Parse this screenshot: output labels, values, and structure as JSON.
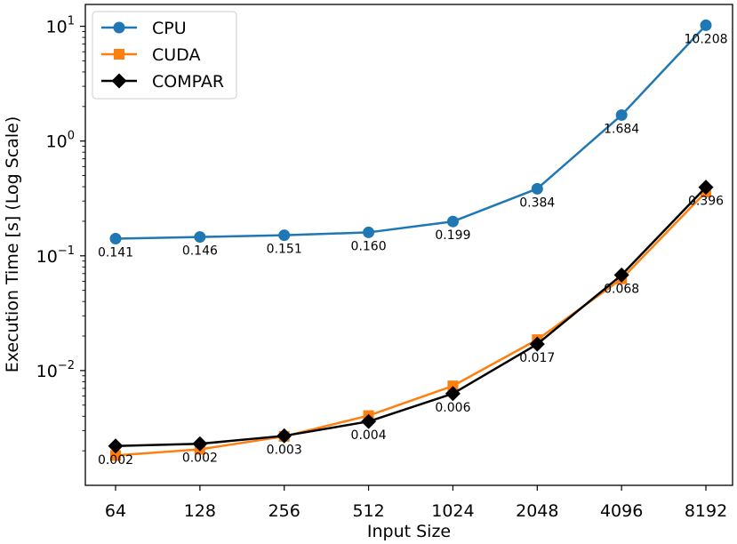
{
  "chart_data": {
    "type": "line",
    "title": "",
    "xlabel": "Input Size",
    "ylabel": "Execution Time [s] (Log Scale)",
    "yscale": "log",
    "ylim": [
      0.001,
      15.5
    ],
    "grid": false,
    "legend_position": "top-left",
    "x": [
      64,
      128,
      256,
      512,
      1024,
      2048,
      4096,
      8192
    ],
    "x_tick_labels": [
      "64",
      "128",
      "256",
      "512",
      "1024",
      "2048",
      "4096",
      "8192"
    ],
    "y_ticks": [
      {
        "value": 10,
        "base": "10",
        "exp": "1"
      },
      {
        "value": 1,
        "base": "10",
        "exp": "0"
      },
      {
        "value": 0.1,
        "base": "10",
        "exp": "−1"
      },
      {
        "value": 0.01,
        "base": "10",
        "exp": "−2"
      }
    ],
    "series": [
      {
        "name": "CPU",
        "color": "#1f77b4",
        "marker": "circle",
        "values": [
          0.141,
          0.146,
          0.151,
          0.16,
          0.199,
          0.384,
          1.684,
          10.208
        ],
        "labels": [
          "0.141",
          "0.146",
          "0.151",
          "0.160",
          "0.199",
          "0.384",
          "1.684",
          "10.208"
        ]
      },
      {
        "name": "CUDA",
        "color": "#ff7f0e",
        "marker": "square",
        "values": [
          0.00182,
          0.00206,
          0.00267,
          0.00405,
          0.00735,
          0.0186,
          0.063,
          0.36
        ],
        "labels": []
      },
      {
        "name": "COMPAR",
        "color": "#000000",
        "marker": "diamond",
        "values": [
          0.0022,
          0.0023,
          0.0027,
          0.0036,
          0.0063,
          0.017,
          0.068,
          0.396
        ],
        "labels": [
          "0.002",
          "0.002",
          "0.003",
          "0.004",
          "0.006",
          "0.017",
          "0.068",
          "0.396"
        ]
      }
    ]
  }
}
